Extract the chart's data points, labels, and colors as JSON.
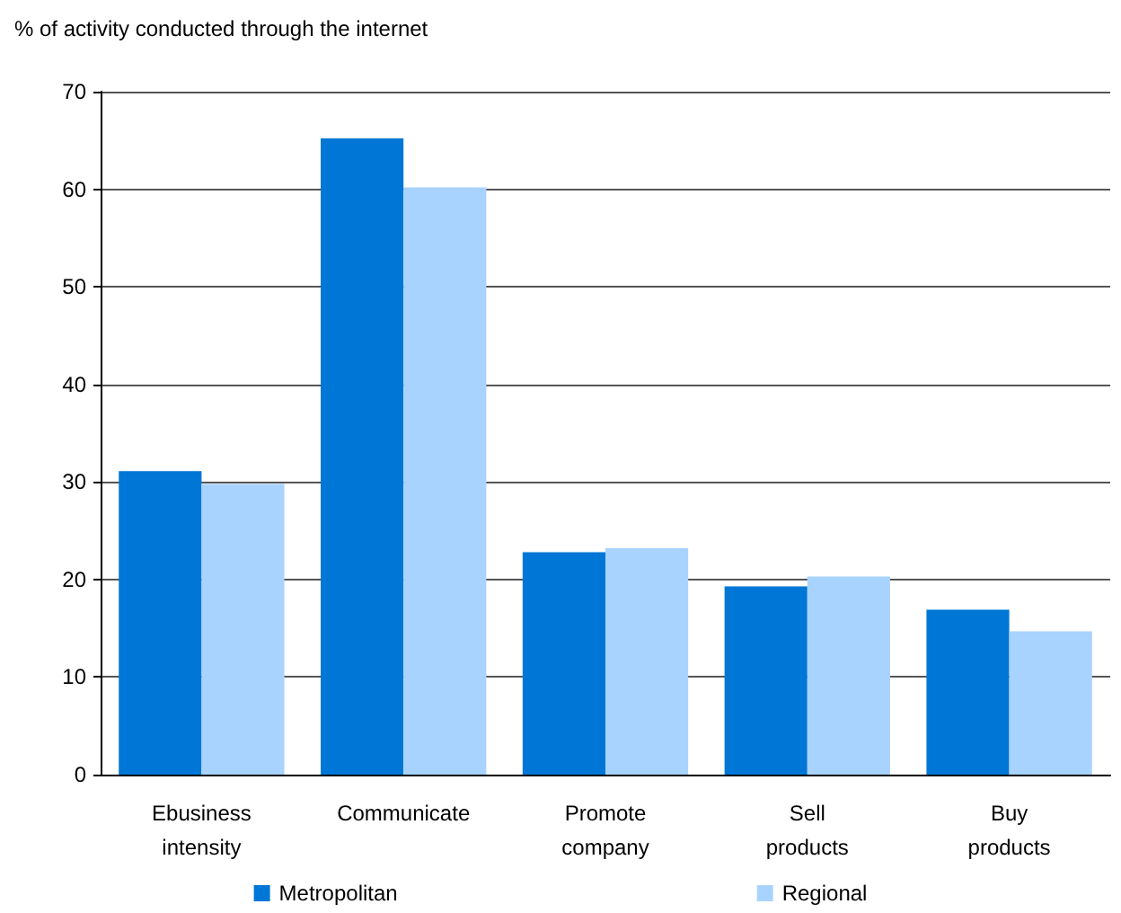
{
  "chart_data": {
    "type": "bar",
    "ylabel": "% of activity conducted through the internet",
    "categories": [
      "Ebusiness intensity",
      "Communicate",
      "Promote company",
      "Sell products",
      "Buy products"
    ],
    "series": [
      {
        "name": "Metropolitan",
        "color": "#0077d6",
        "values": [
          31.1,
          65.2,
          22.8,
          19.3,
          16.9
        ]
      },
      {
        "name": "Regional",
        "color": "#a9d3ff",
        "values": [
          29.8,
          60.2,
          23.2,
          20.3,
          14.7
        ]
      }
    ],
    "ylim": [
      0,
      70
    ],
    "yticks": [
      0,
      10,
      20,
      30,
      40,
      50,
      60,
      70
    ],
    "grid": "y",
    "legend": "bottom"
  }
}
